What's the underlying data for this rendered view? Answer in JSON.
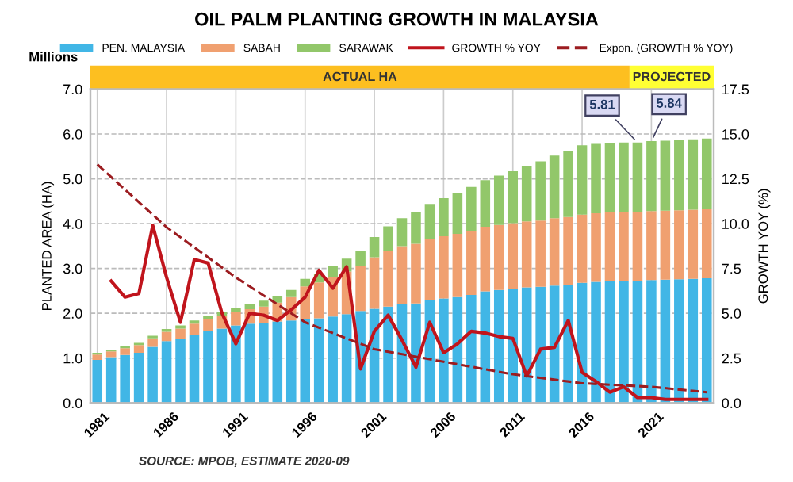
{
  "chart_data": {
    "type": "bar",
    "title": "OIL PALM PLANTING GROWTH IN MALAYSIA",
    "ylabel": "PLANTED AREA (HA)",
    "y2label": "GROWTH YOY (%)",
    "annotations": [
      "Millions",
      "ACTUAL HA",
      "PROJECTED",
      "SOURCE: MPOB, ESTIMATE 2020-09"
    ],
    "x": [
      1981,
      1982,
      1983,
      1984,
      1985,
      1986,
      1987,
      1988,
      1989,
      1990,
      1991,
      1992,
      1993,
      1994,
      1995,
      1996,
      1997,
      1998,
      1999,
      2000,
      2001,
      2002,
      2003,
      2004,
      2005,
      2006,
      2007,
      2008,
      2009,
      2010,
      2011,
      2012,
      2013,
      2014,
      2015,
      2016,
      2017,
      2018,
      2019,
      2020,
      2021,
      2022,
      2023,
      2024,
      2025
    ],
    "stacked": true,
    "series": [
      {
        "name": "PEN. MALAYSIA",
        "color": "#41b6e6",
        "values": [
          0.96,
          1.02,
          1.07,
          1.12,
          1.25,
          1.38,
          1.43,
          1.52,
          1.6,
          1.66,
          1.73,
          1.77,
          1.79,
          1.82,
          1.84,
          1.87,
          1.89,
          1.93,
          1.98,
          2.05,
          2.1,
          2.15,
          2.2,
          2.22,
          2.3,
          2.33,
          2.36,
          2.41,
          2.49,
          2.52,
          2.55,
          2.58,
          2.59,
          2.62,
          2.64,
          2.68,
          2.7,
          2.71,
          2.72,
          2.72,
          2.74,
          2.75,
          2.76,
          2.77,
          2.78
        ]
      },
      {
        "name": "SABAH",
        "color": "#f0a070",
        "values": [
          0.12,
          0.13,
          0.15,
          0.17,
          0.19,
          0.21,
          0.23,
          0.25,
          0.27,
          0.28,
          0.29,
          0.32,
          0.36,
          0.42,
          0.52,
          0.73,
          0.8,
          0.88,
          0.95,
          1.0,
          1.15,
          1.25,
          1.3,
          1.33,
          1.36,
          1.39,
          1.41,
          1.43,
          1.44,
          1.45,
          1.46,
          1.47,
          1.48,
          1.5,
          1.51,
          1.52,
          1.53,
          1.54,
          1.54,
          1.54,
          1.54,
          1.54,
          1.54,
          1.54,
          1.54
        ]
      },
      {
        "name": "SARAWAK",
        "color": "#92c76a",
        "values": [
          0.04,
          0.04,
          0.05,
          0.05,
          0.06,
          0.06,
          0.07,
          0.07,
          0.08,
          0.09,
          0.1,
          0.11,
          0.13,
          0.14,
          0.16,
          0.17,
          0.2,
          0.24,
          0.29,
          0.35,
          0.45,
          0.54,
          0.62,
          0.7,
          0.78,
          0.85,
          0.92,
          0.98,
          1.04,
          1.1,
          1.16,
          1.24,
          1.32,
          1.4,
          1.48,
          1.55,
          1.55,
          1.55,
          1.55,
          1.55,
          1.56,
          1.56,
          1.57,
          1.57,
          1.58
        ]
      },
      {
        "name": "GROWTH % YOY",
        "type": "line",
        "axis": "y2",
        "color": "#c0141c",
        "x": [
          1982,
          1983,
          1984,
          1985,
          1986,
          1987,
          1988,
          1989,
          1990,
          1991,
          1992,
          1993,
          1994,
          1995,
          1996,
          1997,
          1998,
          1999,
          2000,
          2001,
          2002,
          2003,
          2004,
          2005,
          2006,
          2007,
          2008,
          2009,
          2010,
          2011,
          2012,
          2013,
          2014,
          2015,
          2016,
          2017,
          2018,
          2019,
          2020,
          2021,
          2022,
          2023,
          2024,
          2025
        ],
        "values": [
          6.8,
          5.9,
          6.1,
          9.9,
          7.0,
          4.5,
          8.0,
          7.8,
          5.0,
          3.3,
          5.0,
          4.9,
          4.6,
          5.2,
          5.9,
          7.4,
          6.4,
          7.6,
          1.9,
          4.0,
          4.9,
          3.5,
          2.0,
          4.5,
          2.8,
          3.3,
          4.0,
          3.9,
          3.7,
          3.6,
          1.5,
          3.0,
          3.1,
          4.6,
          1.7,
          1.2,
          0.6,
          0.9,
          0.3,
          0.3,
          0.2,
          0.2,
          0.2,
          0.2
        ]
      },
      {
        "name": "Expon. (GROWTH % YOY)",
        "type": "line",
        "axis": "y2",
        "line_style": "dashed",
        "color": "#9c1c20",
        "x": [
          1981,
          1986,
          1991,
          1996,
          2001,
          2006,
          2011,
          2016,
          2021,
          2025
        ],
        "values": [
          13.3,
          9.8,
          7.0,
          4.5,
          3.0,
          2.3,
          1.6,
          1.1,
          0.9,
          0.6
        ]
      }
    ],
    "totals": [
      null,
      null,
      null,
      null,
      null,
      null,
      null,
      null,
      null,
      null,
      null,
      null,
      null,
      null,
      null,
      null,
      null,
      null,
      null,
      null,
      null,
      null,
      null,
      null,
      null,
      null,
      null,
      null,
      null,
      null,
      null,
      null,
      null,
      null,
      null,
      null,
      null,
      null,
      null,
      "5.81",
      "5.84",
      null,
      null,
      null,
      null
    ],
    "xlim": [
      1980.5,
      2025.5
    ],
    "xticks": [
      1981,
      1986,
      1991,
      1996,
      2001,
      2006,
      2011,
      2016,
      2021
    ],
    "ylim": [
      0,
      7
    ],
    "yticks": [
      {
        "value": 0,
        "label": "0.0"
      },
      {
        "value": 1,
        "label": "1.0"
      },
      {
        "value": 2,
        "label": "2.0"
      },
      {
        "value": 3,
        "label": "3.0"
      },
      {
        "value": 4,
        "label": "4.0"
      },
      {
        "value": 5,
        "label": "5.0"
      },
      {
        "value": 6,
        "label": "6.0"
      },
      {
        "value": 7,
        "label": "7.0"
      }
    ],
    "y2lim": [
      0,
      17.5
    ],
    "y2ticks": [
      {
        "value": 0,
        "label": "0.0"
      },
      {
        "value": 2.5,
        "label": "2.5"
      },
      {
        "value": 5,
        "label": "5.0"
      },
      {
        "value": 7.5,
        "label": "7.5"
      },
      {
        "value": 10,
        "label": "10.0"
      },
      {
        "value": 12.5,
        "label": "12.5"
      },
      {
        "value": 15,
        "label": "15.0"
      },
      {
        "value": 17.5,
        "label": "17.5"
      }
    ],
    "grid": true,
    "legend": "top"
  }
}
